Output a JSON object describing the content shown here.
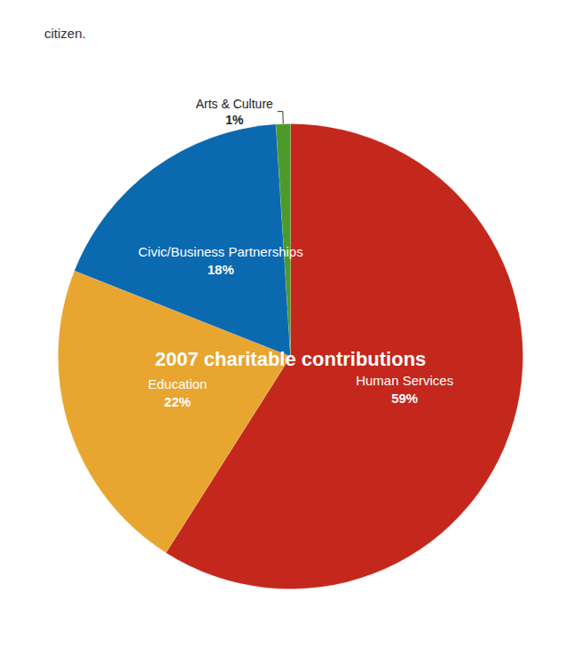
{
  "chart_data": {
    "type": "pie",
    "title": "2007 charitable contributions",
    "annotations": [
      "citizen."
    ],
    "categories": [
      "Human Services",
      "Education",
      "Civic/Business Partnerships",
      "Arts & Culture"
    ],
    "values": [
      59,
      22,
      18,
      1
    ],
    "value_labels": [
      "59%",
      "22%",
      "18%",
      "1%"
    ],
    "colors": [
      "#c4281c",
      "#e8a630",
      "#0b69b0",
      "#4c9a2a"
    ],
    "data_labels": true
  }
}
